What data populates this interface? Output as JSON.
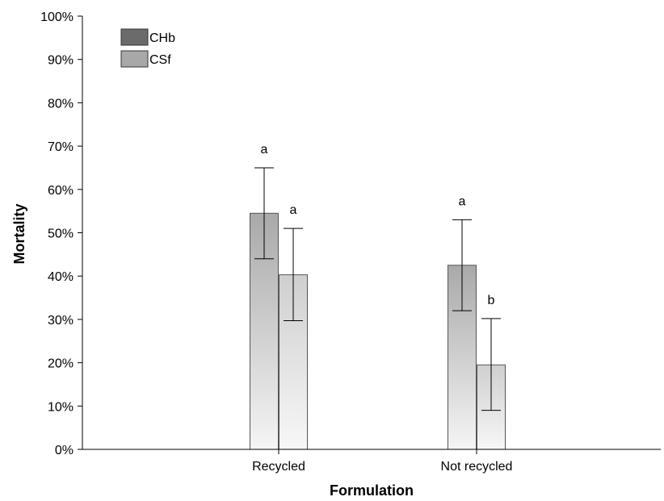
{
  "chart_data": {
    "type": "bar",
    "xlabel": "Formulation",
    "ylabel": "Mortality",
    "categories": [
      "Recycled",
      "Not recycled"
    ],
    "ylim": [
      0,
      100
    ],
    "y_tick_labels": [
      "0%",
      "10%",
      "20%",
      "30%",
      "40%",
      "50%",
      "60%",
      "70%",
      "80%",
      "90%",
      "100%"
    ],
    "y_ticks": [
      0,
      10,
      20,
      30,
      40,
      50,
      60,
      70,
      80,
      90,
      100
    ],
    "grid": false,
    "legend_position": "top-left",
    "series": [
      {
        "name": "CHb",
        "values": [
          54.5,
          42.5
        ],
        "error_low": [
          44,
          32
        ],
        "error_high": [
          65,
          53
        ],
        "significance": [
          "a",
          "a"
        ],
        "colors": {
          "legend": "#6b6b6b",
          "gradient_top": "#a9a9a9",
          "gradient_bottom": "#f5f5f5"
        }
      },
      {
        "name": "CSf",
        "values": [
          40.3,
          19.5
        ],
        "error_low": [
          29.7,
          9
        ],
        "error_high": [
          51,
          30.2
        ],
        "significance": [
          "a",
          "b"
        ],
        "colors": {
          "legend": "#a8a8a8",
          "gradient_top": "#cfcfcf",
          "gradient_bottom": "#f7f7f7"
        }
      }
    ]
  }
}
